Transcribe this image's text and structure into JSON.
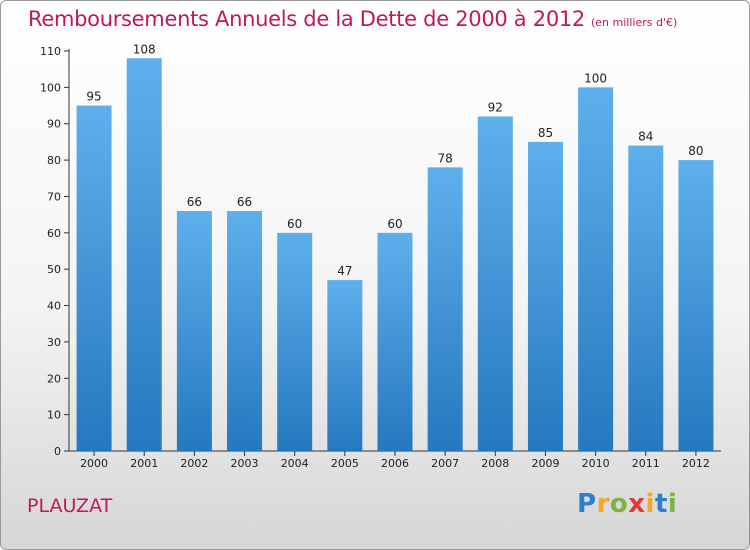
{
  "title": "Remboursements Annuels de la Dette de 2000 à 2012",
  "unit": "(en milliers d'€)",
  "commune": "PLAUZAT",
  "logo": {
    "letters": [
      "P",
      "r",
      "o",
      "x",
      "i",
      "t",
      "i"
    ],
    "colors": [
      "#2e7dd1",
      "#f5a623",
      "#7cb342",
      "#e53935",
      "#f5a623",
      "#2e7dd1",
      "#7cb342"
    ]
  },
  "colors": {
    "bar": "#3a8fd6",
    "title": "#c2185b"
  },
  "chart_data": {
    "type": "bar",
    "title": "Remboursements Annuels de la Dette de 2000 à 2012",
    "categories": [
      "2000",
      "2001",
      "2002",
      "2003",
      "2004",
      "2005",
      "2006",
      "2007",
      "2008",
      "2009",
      "2010",
      "2011",
      "2012"
    ],
    "values": [
      95,
      108,
      66,
      66,
      60,
      47,
      60,
      78,
      92,
      85,
      100,
      84,
      80
    ],
    "ylim": [
      0,
      110
    ],
    "yticks": [
      0,
      10,
      20,
      30,
      40,
      50,
      60,
      70,
      80,
      90,
      100,
      110
    ],
    "grid": false,
    "xlabel": "",
    "ylabel": ""
  }
}
